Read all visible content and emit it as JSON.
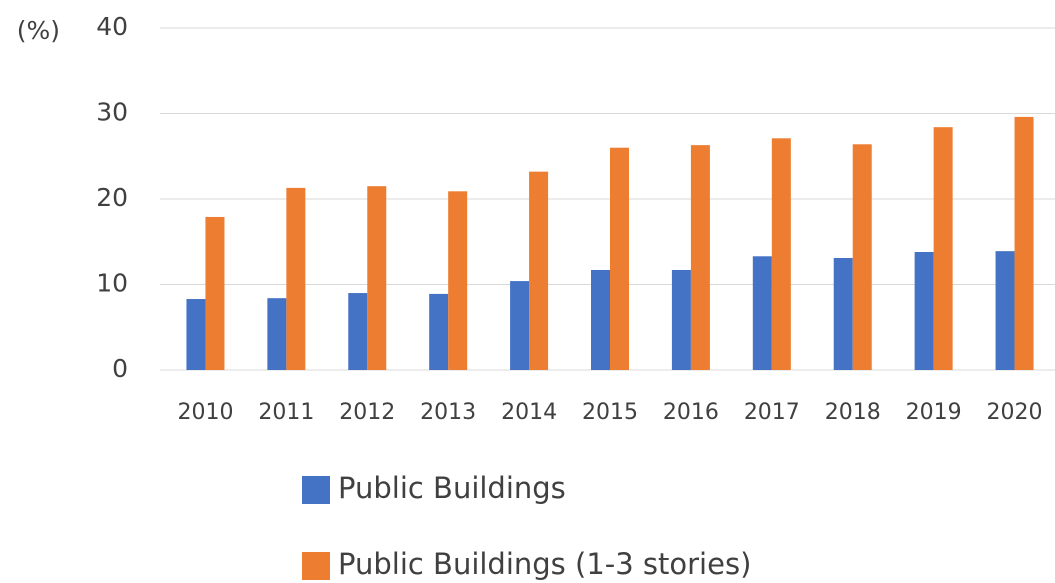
{
  "chart_data": {
    "type": "bar",
    "y_label": "(%)",
    "categories": [
      "2010",
      "2011",
      "2012",
      "2013",
      "2014",
      "2015",
      "2016",
      "2017",
      "2018",
      "2019",
      "2020"
    ],
    "series": [
      {
        "name": "Public Buildings",
        "color": "#4472c4",
        "values": [
          8.3,
          8.4,
          9.0,
          8.9,
          10.4,
          11.7,
          11.7,
          13.3,
          13.1,
          13.8,
          13.9
        ]
      },
      {
        "name": "Public Buildings (1-3 stories)",
        "color": "#ed7d31",
        "values": [
          17.9,
          21.3,
          21.5,
          20.9,
          23.2,
          26.0,
          26.3,
          27.1,
          26.4,
          28.4,
          29.6
        ]
      }
    ],
    "ylim": [
      0,
      40
    ],
    "yticks": [
      0,
      10,
      20,
      30,
      40
    ],
    "grid": true,
    "legend": "bottom"
  }
}
